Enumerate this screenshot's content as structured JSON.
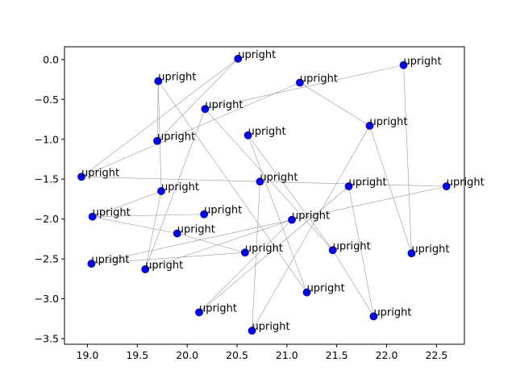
{
  "chart_data": {
    "type": "scatter",
    "title": "",
    "xlabel": "",
    "ylabel": "",
    "xlim": [
      18.77,
      22.78
    ],
    "ylim": [
      -3.57,
      0.16
    ],
    "x_ticks": [
      19.0,
      19.5,
      20.0,
      20.5,
      21.0,
      21.5,
      22.0,
      22.5
    ],
    "x_tick_labels": [
      "19.0",
      "19.5",
      "20.0",
      "20.5",
      "21.0",
      "21.5",
      "22.0",
      "22.5"
    ],
    "y_ticks": [
      0.0,
      -0.5,
      -1.0,
      -1.5,
      -2.0,
      -2.5,
      -3.0,
      -3.5
    ],
    "y_tick_labels": [
      "0.0",
      "−0.5",
      "−1.0",
      "−1.5",
      "−2.0",
      "−2.5",
      "−3.0",
      "−3.5"
    ],
    "grid": false,
    "legend": false,
    "marker_color": "#0000ff",
    "edge_color": "#999999",
    "points": [
      {
        "x": 20.51,
        "y": 0.01,
        "label": "upright"
      },
      {
        "x": 22.17,
        "y": -0.07,
        "label": "upright"
      },
      {
        "x": 19.71,
        "y": -0.27,
        "label": "upright"
      },
      {
        "x": 21.13,
        "y": -0.29,
        "label": "upright"
      },
      {
        "x": 20.18,
        "y": -0.62,
        "label": "upright"
      },
      {
        "x": 21.83,
        "y": -0.83,
        "label": "upright"
      },
      {
        "x": 20.61,
        "y": -0.95,
        "label": "upright"
      },
      {
        "x": 19.7,
        "y": -1.02,
        "label": "upright"
      },
      {
        "x": 18.94,
        "y": -1.47,
        "label": "upright"
      },
      {
        "x": 20.73,
        "y": -1.53,
        "label": "upright"
      },
      {
        "x": 21.62,
        "y": -1.59,
        "label": "upright"
      },
      {
        "x": 22.6,
        "y": -1.59,
        "label": "upright"
      },
      {
        "x": 19.74,
        "y": -1.65,
        "label": "upright"
      },
      {
        "x": 20.17,
        "y": -1.94,
        "label": "upright"
      },
      {
        "x": 19.05,
        "y": -1.97,
        "label": "upright"
      },
      {
        "x": 21.05,
        "y": -2.01,
        "label": "upright"
      },
      {
        "x": 19.9,
        "y": -2.18,
        "label": "upright"
      },
      {
        "x": 21.46,
        "y": -2.39,
        "label": "upright"
      },
      {
        "x": 20.58,
        "y": -2.42,
        "label": "upright"
      },
      {
        "x": 22.25,
        "y": -2.43,
        "label": "upright"
      },
      {
        "x": 19.04,
        "y": -2.56,
        "label": "upright"
      },
      {
        "x": 19.58,
        "y": -2.63,
        "label": "upright"
      },
      {
        "x": 21.2,
        "y": -2.92,
        "label": "upright"
      },
      {
        "x": 20.12,
        "y": -3.17,
        "label": "upright"
      },
      {
        "x": 21.87,
        "y": -3.22,
        "label": "upright"
      },
      {
        "x": 20.65,
        "y": -3.4,
        "label": "upright"
      }
    ],
    "edges": [
      [
        8,
        3
      ],
      [
        8,
        0
      ],
      [
        0,
        7
      ],
      [
        7,
        2
      ],
      [
        2,
        12
      ],
      [
        12,
        14
      ],
      [
        14,
        13
      ],
      [
        14,
        16
      ],
      [
        16,
        18
      ],
      [
        18,
        20
      ],
      [
        20,
        15
      ],
      [
        15,
        11
      ],
      [
        11,
        9
      ],
      [
        9,
        8
      ],
      [
        2,
        22
      ],
      [
        22,
        6
      ],
      [
        6,
        17
      ],
      [
        17,
        24
      ],
      [
        24,
        10
      ],
      [
        10,
        23
      ],
      [
        23,
        15
      ],
      [
        15,
        21
      ],
      [
        21,
        4
      ],
      [
        4,
        1
      ],
      [
        1,
        19
      ],
      [
        19,
        5
      ],
      [
        5,
        3
      ],
      [
        5,
        25
      ],
      [
        25,
        9
      ],
      [
        4,
        17
      ],
      [
        12,
        21
      ]
    ]
  }
}
